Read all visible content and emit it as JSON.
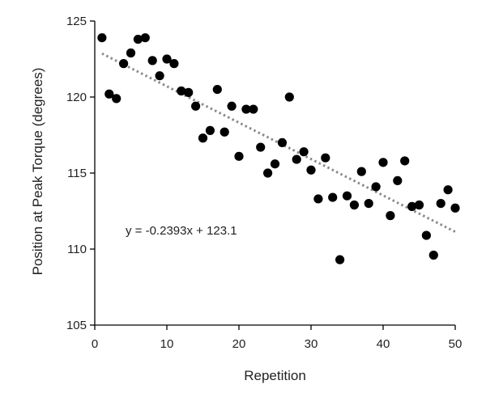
{
  "chart_data": {
    "type": "scatter",
    "title": "",
    "xlabel": "Repetition",
    "ylabel": "Position at Peak Torque (degrees)",
    "xlim": [
      0,
      50
    ],
    "ylim": [
      105,
      125
    ],
    "xticks": [
      0,
      10,
      20,
      30,
      40,
      50
    ],
    "yticks": [
      105,
      110,
      115,
      120,
      125
    ],
    "grid": false,
    "colors": {
      "points": "#000000",
      "trendline": "#8a8a8a",
      "axis": "#000000"
    },
    "series": [
      {
        "x": [
          1,
          2,
          3,
          4,
          5,
          6,
          7,
          8,
          9,
          10,
          11,
          12,
          13,
          14,
          15,
          16,
          17,
          18,
          19,
          20,
          21,
          22,
          23,
          24,
          25,
          26,
          27,
          28,
          29,
          30,
          31,
          32,
          33,
          34,
          35,
          36,
          37,
          38,
          39,
          40,
          41,
          42,
          43,
          44,
          45,
          46,
          47,
          48,
          49,
          50
        ],
        "y": [
          123.9,
          120.2,
          119.9,
          122.2,
          122.9,
          123.8,
          123.9,
          122.4,
          121.4,
          122.5,
          122.2,
          120.4,
          120.3,
          119.4,
          117.3,
          117.8,
          120.5,
          117.7,
          119.4,
          116.1,
          119.2,
          119.2,
          116.7,
          115.0,
          115.6,
          117.0,
          120.0,
          115.9,
          116.4,
          115.2,
          113.3,
          116.0,
          113.4,
          109.3,
          113.5,
          112.9,
          115.1,
          113.0,
          114.1,
          115.7,
          112.2,
          114.5,
          115.8,
          112.8,
          112.9,
          110.9,
          109.6,
          113.0,
          113.9,
          112.7
        ]
      }
    ],
    "trendline": {
      "type": "linear",
      "slope": -0.2393,
      "intercept": 123.1,
      "style": "dotted",
      "equation_label": "y = -0.2393x + 123.1"
    }
  }
}
